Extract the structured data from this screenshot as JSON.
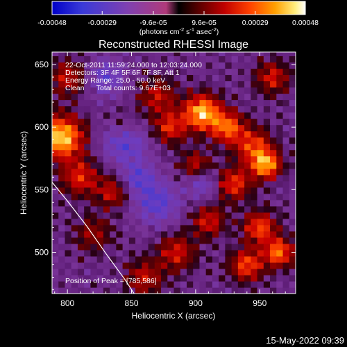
{
  "chart_data": {
    "type": "heatmap",
    "title": "Reconstructed RHESSI Image",
    "xlabel": "Heliocentric X (arcsec)",
    "ylabel": "Heliocentric Y (arcsec)",
    "xlim": [
      788,
      978
    ],
    "ylim": [
      467,
      660
    ],
    "x_ticks": [
      800,
      850,
      900,
      950
    ],
    "y_ticks": [
      500,
      550,
      600,
      650
    ],
    "colorbar": {
      "range": [
        -0.00048,
        0.00048
      ],
      "ticks": [
        -0.00048,
        -0.00029,
        -9.6e-05,
        9.6e-05,
        0.00029,
        0.00048
      ],
      "tick_labels": [
        "-0.00048",
        "-0.00029",
        "-9.6e-05",
        "9.6e-05",
        "0.00029",
        "0.00048"
      ],
      "unit_label": "(photons cm",
      "unit_exp1": "-2",
      "unit_mid": " s",
      "unit_exp2": "-1",
      "unit_mid2": " asec",
      "unit_exp3": "-2",
      "unit_end": ")"
    },
    "annotations": {
      "time": "22-Oct-2011 11:59:24.000 to 12:03:24.000",
      "detectors": "Detectors: 3F 4F 5F 6F 7F 8F, Att 1",
      "energy": "Energy Range: 25.0 - 50.0 keV",
      "clean": "Clean      Total counts: 9.67E+03",
      "peak": "Position of Peak = [785,586]"
    },
    "limb_curve": [
      [
        788,
        556
      ],
      [
        800,
        541
      ],
      [
        815,
        521
      ],
      [
        830,
        499
      ],
      [
        845,
        478
      ],
      [
        852,
        467
      ]
    ],
    "grid_step": 5,
    "peak": [
      785,
      586
    ],
    "hotspots": [
      {
        "x": 795,
        "y": 592,
        "a": 1.0,
        "s": 12
      },
      {
        "x": 810,
        "y": 560,
        "a": 0.55,
        "s": 10
      },
      {
        "x": 800,
        "y": 640,
        "a": 0.45,
        "s": 10
      },
      {
        "x": 835,
        "y": 548,
        "a": 0.45,
        "s": 9
      },
      {
        "x": 820,
        "y": 515,
        "a": 0.35,
        "s": 10
      },
      {
        "x": 870,
        "y": 625,
        "a": 0.45,
        "s": 10
      },
      {
        "x": 880,
        "y": 600,
        "a": 0.55,
        "s": 9
      },
      {
        "x": 905,
        "y": 612,
        "a": 0.95,
        "s": 10
      },
      {
        "x": 925,
        "y": 600,
        "a": 0.7,
        "s": 9
      },
      {
        "x": 945,
        "y": 585,
        "a": 0.6,
        "s": 10
      },
      {
        "x": 955,
        "y": 570,
        "a": 0.85,
        "s": 8
      },
      {
        "x": 930,
        "y": 555,
        "a": 0.6,
        "s": 9
      },
      {
        "x": 950,
        "y": 520,
        "a": 0.65,
        "s": 9
      },
      {
        "x": 965,
        "y": 500,
        "a": 0.75,
        "s": 8
      },
      {
        "x": 940,
        "y": 490,
        "a": 0.65,
        "s": 9
      },
      {
        "x": 885,
        "y": 500,
        "a": 0.5,
        "s": 10
      },
      {
        "x": 860,
        "y": 480,
        "a": 0.45,
        "s": 10
      },
      {
        "x": 910,
        "y": 525,
        "a": 0.5,
        "s": 9
      },
      {
        "x": 960,
        "y": 640,
        "a": 0.5,
        "s": 9
      },
      {
        "x": 900,
        "y": 570,
        "a": 0.45,
        "s": 8
      },
      {
        "x": 845,
        "y": 600,
        "a": 0.3,
        "s": 10
      }
    ],
    "coldspots": [
      {
        "x": 845,
        "y": 590,
        "a": 0.55,
        "s": 12
      },
      {
        "x": 870,
        "y": 540,
        "a": 0.45,
        "s": 12
      },
      {
        "x": 830,
        "y": 640,
        "a": 0.4,
        "s": 10
      },
      {
        "x": 855,
        "y": 560,
        "a": 0.4,
        "s": 9
      },
      {
        "x": 905,
        "y": 555,
        "a": 0.35,
        "s": 8
      }
    ]
  },
  "footer": {
    "timestamp": "15-May-2022 09:39"
  }
}
